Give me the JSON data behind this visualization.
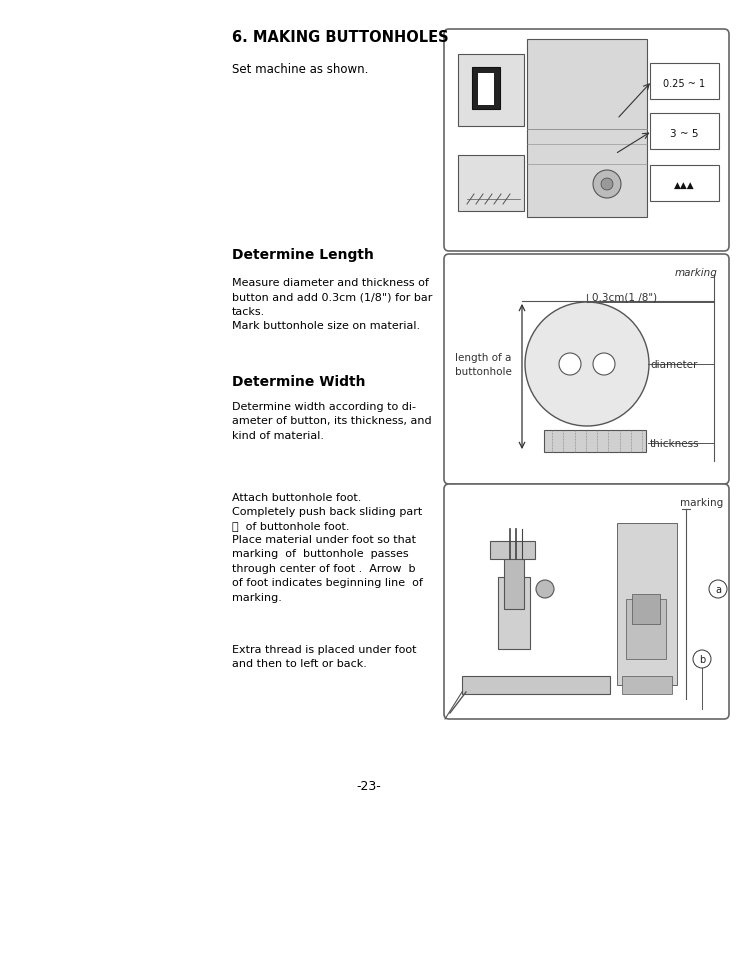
{
  "title": "6. MAKING BUTTONHOLES",
  "bg_color": "#ffffff",
  "text_color": "#000000",
  "page_number": "-23-",
  "section1_text": "Set machine as shown.",
  "section2_heading": "Determine Length",
  "section2_body": "Measure diameter and thickness of\nbutton and add 0.3cm (1/8\") for bar\ntacks.\nMark buttonhole size on material.",
  "section3_heading": "Determine Width",
  "section3_body": "Determine width according to di-\nameter of button, its thickness, and\nkind of material.",
  "section4_line1": "Attach buttonhole foot.",
  "section4_line2": "Completely push back sliding part",
  "section4_line3a": "ⓐ  of buttonhole foot.",
  "section4_para2": "Place material under foot so that\nmarking  of  buttonhole  passes\nthrough center of foot .  Arrow  b\nof foot indicates beginning line  of\nmarking.",
  "section4_para3": "Extra thread is placed under foot\nand then to left or back."
}
